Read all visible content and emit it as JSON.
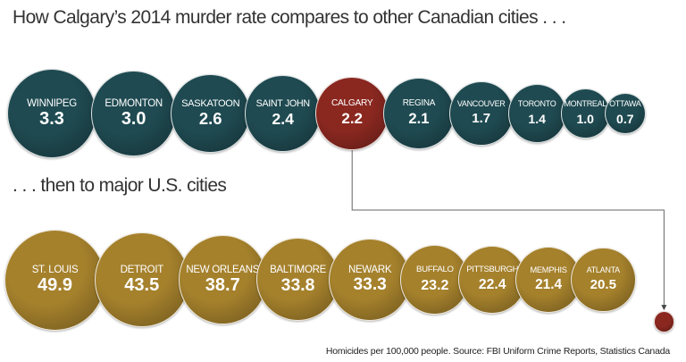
{
  "chart_data": [
    {
      "type": "bubble",
      "title": "How Calgary’s 2014 murder rate compares to other Canadian cities . . .",
      "categories": [
        "WINNIPEG",
        "EDMONTON",
        "SASKATOON",
        "SAINT JOHN",
        "CALGARY",
        "REGINA",
        "VANCOUVER",
        "TORONTO",
        "MONTREAL",
        "OTTAWA"
      ],
      "values": [
        3.3,
        3.0,
        2.6,
        2.4,
        2.2,
        2.1,
        1.7,
        1.4,
        1.0,
        0.7
      ],
      "value_labels": [
        "3.3",
        "3.0",
        "2.6",
        "2.4",
        "2.2",
        "2.1",
        "1.7",
        "1.4",
        "1.0",
        "0.7"
      ],
      "colors": [
        "#1f4a51",
        "#1f4a51",
        "#1f4a51",
        "#1f4a51",
        "#8a2820",
        "#1f4a51",
        "#1f4a51",
        "#1f4a51",
        "#1f4a51",
        "#1f4a51"
      ]
    },
    {
      "type": "bubble",
      "title": ". . . then to major U.S. cities",
      "categories": [
        "ST. LOUIS",
        "DETROIT",
        "NEW ORLEANS",
        "BALTIMORE",
        "NEWARK",
        "BUFFALO",
        "PITTSBURGH",
        "MEMPHIS",
        "ATLANTA"
      ],
      "values": [
        49.9,
        43.5,
        38.7,
        33.8,
        33.3,
        23.2,
        22.4,
        21.4,
        20.5
      ],
      "value_labels": [
        "49.9",
        "43.5",
        "38.7",
        "33.8",
        "33.3",
        "23.2",
        "22.4",
        "21.4",
        "20.5"
      ],
      "color": "#a5812c",
      "note": "Homicides per 100,000 people. Source: FBI Uniform Crime Reports, Statistics Canada"
    }
  ]
}
